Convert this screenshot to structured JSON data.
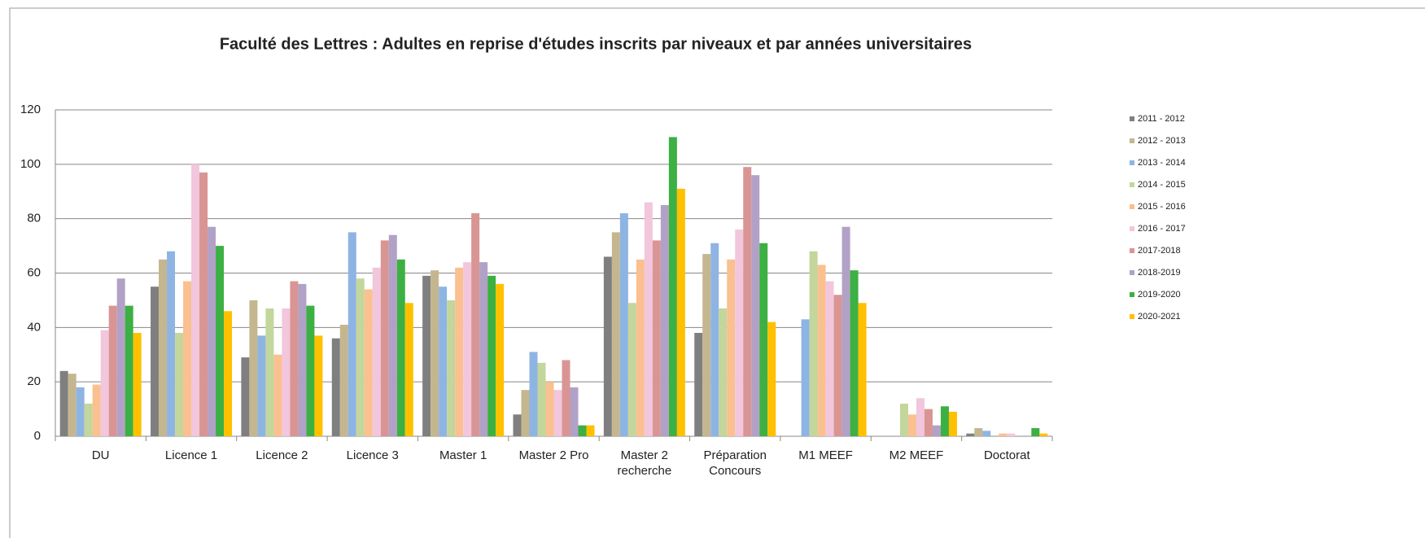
{
  "chart_data": {
    "type": "bar",
    "title": "Faculté des Lettres : Adultes en reprise d'études inscrits par niveaux et par années universitaires",
    "categories": [
      "DU",
      "Licence 1",
      "Licence 2",
      "Licence 3",
      "Master 1",
      "Master 2 Pro",
      "Master 2 recherche",
      "Préparation Concours",
      "M1 MEEF",
      "M2 MEEF",
      "Doctorat"
    ],
    "series": [
      {
        "name": "2011 - 2012",
        "color": "#7f7f7f",
        "values": [
          24,
          55,
          29,
          36,
          59,
          8,
          66,
          38,
          null,
          null,
          1
        ]
      },
      {
        "name": "2012 - 2013",
        "color": "#c4b68f",
        "values": [
          23,
          65,
          50,
          41,
          61,
          17,
          75,
          67,
          null,
          null,
          3
        ]
      },
      {
        "name": "2013 - 2014",
        "color": "#8eb4e3",
        "values": [
          18,
          68,
          37,
          75,
          55,
          31,
          82,
          71,
          43,
          null,
          2
        ]
      },
      {
        "name": "2014 - 2015",
        "color": "#c3d69b",
        "values": [
          12,
          38,
          47,
          58,
          50,
          27,
          49,
          47,
          68,
          12,
          null
        ]
      },
      {
        "name": "2015 - 2016",
        "color": "#fac090",
        "values": [
          19,
          57,
          30,
          54,
          62,
          20,
          65,
          65,
          63,
          8,
          1
        ]
      },
      {
        "name": "2016 - 2017",
        "color": "#f2c6dc",
        "values": [
          39,
          100,
          47,
          62,
          64,
          17,
          86,
          76,
          57,
          14,
          1
        ]
      },
      {
        "name": "2017-2018",
        "color": "#d99594",
        "values": [
          48,
          97,
          57,
          72,
          82,
          28,
          72,
          99,
          52,
          10,
          null
        ]
      },
      {
        "name": "2018-2019",
        "color": "#b2a1c7",
        "values": [
          58,
          77,
          56,
          74,
          64,
          18,
          85,
          96,
          77,
          4,
          null
        ]
      },
      {
        "name": "2019-2020",
        "color": "#3cb043",
        "values": [
          48,
          70,
          48,
          65,
          59,
          4,
          110,
          71,
          61,
          11,
          3
        ]
      },
      {
        "name": "2020-2021",
        "color": "#ffc000",
        "values": [
          38,
          46,
          37,
          49,
          56,
          4,
          91,
          42,
          49,
          9,
          1
        ]
      }
    ],
    "ylim": [
      0,
      120
    ],
    "yticks": [
      0,
      20,
      40,
      60,
      80,
      100,
      120
    ],
    "grid": true,
    "legend": "right"
  }
}
